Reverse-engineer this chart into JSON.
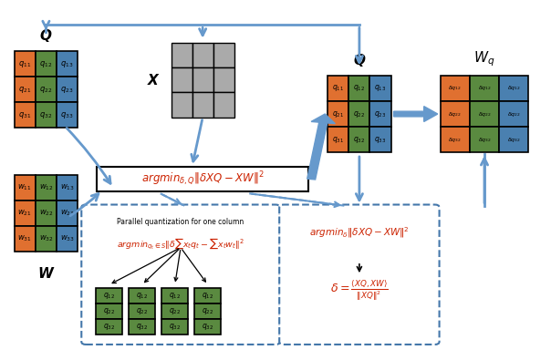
{
  "bg_color": "#ffffff",
  "arrow_color": "#6699cc",
  "text_color_red": "#cc2200",
  "text_color_black": "#000000",
  "matrix_colors": {
    "orange": "#e07030",
    "green": "#5a8a40",
    "blue": "#4a80b0",
    "gray": "#aaaaaa"
  }
}
